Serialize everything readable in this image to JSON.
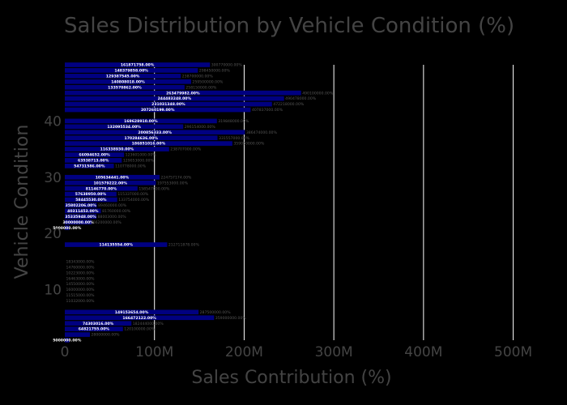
{
  "chart_data": {
    "type": "bar",
    "orientation": "horizontal",
    "title": "Sales Distribution by Vehicle Condition (%)",
    "xlabel": "Sales Contribution (%)",
    "ylabel": "Vehicle Condition",
    "xlim": [
      0,
      560000000
    ],
    "ylim": [
      1,
      50
    ],
    "x_ticks": [
      0,
      100000000,
      200000000,
      300000000,
      400000000,
      500000000
    ],
    "x_tick_labels": [
      "0",
      "100M",
      "200M",
      "300M",
      "400M",
      "500M"
    ],
    "y_ticks": [
      10,
      20,
      30,
      40
    ],
    "y_tick_labels": [
      "10",
      "20",
      "30",
      "40"
    ],
    "grid": "x",
    "colors": {
      "background": "#000000",
      "bar": "#000080",
      "grid": "#ffffff",
      "text": "#444444"
    },
    "data": [
      {
        "condition": 1,
        "value": 5000000,
        "label": "5000000.00%",
        "outer": ""
      },
      {
        "condition": 2,
        "value": 28000000,
        "label": "",
        "outer": "28000000.00%"
      },
      {
        "condition": 3,
        "value": 64821755,
        "label": "64821755.00%",
        "outer": "120100000.00%"
      },
      {
        "condition": 4,
        "value": 74303016,
        "label": "74303016.00%",
        "outer": "182444000.00%"
      },
      {
        "condition": 5,
        "value": 166472122,
        "label": "166472122.00%",
        "outer": "359000000.00%"
      },
      {
        "condition": 6,
        "value": 149153654,
        "label": "149153654.00%",
        "outer": "287500000.00%"
      },
      {
        "condition": 7,
        "value": 0,
        "label": "",
        "outer": ""
      },
      {
        "condition": 8,
        "value": 0,
        "label": "",
        "outer": "11032000.00%"
      },
      {
        "condition": 9,
        "value": 0,
        "label": "",
        "outer": "11515000.00%"
      },
      {
        "condition": 10,
        "value": 0,
        "label": "",
        "outer": "16000000.00%"
      },
      {
        "condition": 11,
        "value": 0,
        "label": "",
        "outer": "14550000.00%"
      },
      {
        "condition": 12,
        "value": 0,
        "label": "",
        "outer": "16463000.00%"
      },
      {
        "condition": 13,
        "value": 0,
        "label": "",
        "outer": "10223000.00%"
      },
      {
        "condition": 14,
        "value": 0,
        "label": "",
        "outer": "14760000.00%"
      },
      {
        "condition": 15,
        "value": 0,
        "label": "",
        "outer": "18343000.00%"
      },
      {
        "condition": 16,
        "value": 0,
        "label": "",
        "outer": ""
      },
      {
        "condition": 17,
        "value": 0,
        "label": "",
        "outer": ""
      },
      {
        "condition": 18,
        "value": 114135554,
        "label": "114135554.00%",
        "outer": "212711878.00%"
      },
      {
        "condition": 19,
        "value": 0,
        "label": "",
        "outer": ""
      },
      {
        "condition": 20,
        "value": 0,
        "label": "",
        "outer": ""
      },
      {
        "condition": 21,
        "value": 5000000,
        "label": "5000000.00%",
        "outer": ""
      },
      {
        "condition": 22,
        "value": 30000000,
        "label": "30000000.00%",
        "outer": "66200000.00%"
      },
      {
        "condition": 23,
        "value": 35335948,
        "label": "35335948.00%",
        "outer": "88003000.00%"
      },
      {
        "condition": 24,
        "value": 40311453,
        "label": "40311453.00%",
        "outer": "81760000.00%"
      },
      {
        "condition": 25,
        "value": 35802206,
        "label": "35802206.00%",
        "outer": "89460000.00%"
      },
      {
        "condition": 26,
        "value": 58445530,
        "label": "58445530.00%",
        "outer": "133754000.00%"
      },
      {
        "condition": 27,
        "value": 57638950,
        "label": "57638950.00%",
        "outer": "115337000.00%"
      },
      {
        "condition": 28,
        "value": 81146770,
        "label": "81146770.00%",
        "outer": "158547000.00%"
      },
      {
        "condition": 29,
        "value": 101579222,
        "label": "101579222.00%",
        "outer": "197553000.00%"
      },
      {
        "condition": 30,
        "value": 105634441,
        "label": "105634441.00%",
        "outer": "224757174.00%"
      },
      {
        "condition": 31,
        "value": 0,
        "label": "",
        "outer": ""
      },
      {
        "condition": 32,
        "value": 54731586,
        "label": "54731586.00%",
        "outer": "110778000.00%"
      },
      {
        "condition": 33,
        "value": 63538713,
        "label": "63538713.00%",
        "outer": "129053000.00%"
      },
      {
        "condition": 34,
        "value": 66094652,
        "label": "66094652.00%",
        "outer": "123601000.00%"
      },
      {
        "condition": 35,
        "value": 116338930,
        "label": "116338930.00%",
        "outer": "238707000.00%"
      },
      {
        "condition": 36,
        "value": 186851016,
        "label": "186851016.00%",
        "outer": "359050000.00%"
      },
      {
        "condition": 37,
        "value": 170284636,
        "label": "170284636.00%",
        "outer": "331557000.00%"
      },
      {
        "condition": 38,
        "value": 200856333,
        "label": "200856333.00%",
        "outer": "386474000.00%"
      },
      {
        "condition": 39,
        "value": 132095534,
        "label": "132095534.00%",
        "outer": "296154000.00%"
      },
      {
        "condition": 40,
        "value": 169628910,
        "label": "169628910.00%",
        "outer": "319848000.00%"
      },
      {
        "condition": 41,
        "value": 0,
        "label": "",
        "outer": ""
      },
      {
        "condition": 42,
        "value": 207260199,
        "label": "207260199.00%",
        "outer": "407837000.00%"
      },
      {
        "condition": 43,
        "value": 231031348,
        "label": "231031348.00%",
        "outer": "472218000.00%"
      },
      {
        "condition": 44,
        "value": 244483248,
        "label": "244483248.00%",
        "outer": "490478000.00%"
      },
      {
        "condition": 45,
        "value": 263479982,
        "label": "263479982.00%",
        "outer": "490100000.00%"
      },
      {
        "condition": 46,
        "value": 133570862,
        "label": "133570862.00%",
        "outer": "258150000.00%"
      },
      {
        "condition": 47,
        "value": 140808018,
        "label": "140808018.00%",
        "outer": "259500000.00%"
      },
      {
        "condition": 48,
        "value": 129387545,
        "label": "129387545.00%",
        "outer": "238700000.00%"
      },
      {
        "condition": 49,
        "value": 148379858,
        "label": "148379858.00%",
        "outer": "298450000.00%"
      },
      {
        "condition": 50,
        "value": 161871758,
        "label": "161871758.00%",
        "outer": "300770000.00%"
      }
    ]
  }
}
